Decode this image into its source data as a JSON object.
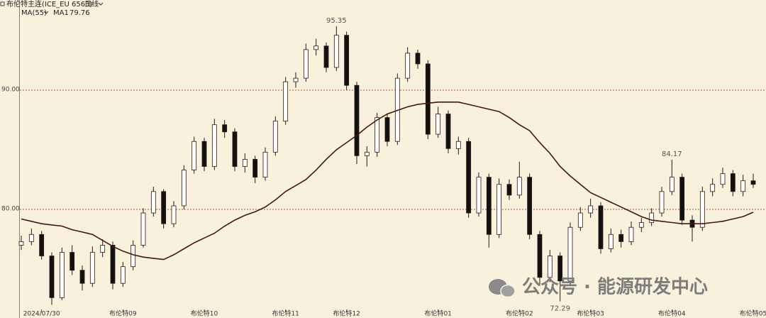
{
  "header": {
    "title": "布伦特主连(ICE_EU 6563)",
    "period": "日线"
  },
  "chart_data": {
    "type": "candlestick",
    "indicator": "MA(55)",
    "ma_name": "MA1",
    "ylim": [
      71.67,
      96.96
    ],
    "yticks": [
      {
        "value": 80,
        "label": "80.00"
      },
      {
        "value": 90,
        "label": "90.00"
      }
    ],
    "grid": true,
    "up_color": "#ffffff",
    "down_color": "#111111",
    "edge_color": "#2a1a10",
    "ma_color": "#4a1410",
    "grid_color": "#c0504d",
    "categories": [
      null,
      null,
      "2024/07/30",
      null,
      null,
      null,
      null,
      null,
      null,
      null,
      "布伦特09",
      null,
      null,
      null,
      null,
      null,
      null,
      null,
      "布伦特10",
      null,
      null,
      null,
      null,
      null,
      null,
      null,
      "布伦特11",
      null,
      null,
      null,
      null,
      null,
      "布伦特12",
      null,
      null,
      null,
      null,
      null,
      null,
      null,
      null,
      "布伦特01",
      null,
      null,
      null,
      null,
      null,
      null,
      null,
      "布伦特02",
      null,
      null,
      null,
      null,
      null,
      null,
      "布伦特03",
      null,
      null,
      null,
      null,
      null,
      null,
      null,
      "布伦特04",
      null,
      null,
      null,
      null,
      null,
      null,
      null,
      "布伦特05"
    ],
    "candles": [
      [
        77.0,
        77.8,
        76.6,
        77.3
      ],
      [
        77.3,
        78.4,
        77.0,
        77.9
      ],
      [
        77.9,
        78.2,
        75.8,
        76.1
      ],
      [
        76.1,
        76.4,
        72.0,
        72.6
      ],
      [
        72.6,
        76.8,
        72.4,
        76.4
      ],
      [
        76.4,
        77.0,
        74.5,
        74.9
      ],
      [
        74.9,
        75.3,
        73.2,
        73.8
      ],
      [
        73.8,
        76.9,
        73.5,
        76.4
      ],
      [
        76.4,
        77.5,
        76.0,
        77.0
      ],
      [
        77.0,
        77.3,
        73.3,
        73.8
      ],
      [
        73.8,
        75.6,
        73.5,
        75.2
      ],
      [
        75.2,
        77.4,
        74.9,
        77.0
      ],
      [
        77.0,
        80.1,
        76.8,
        79.7
      ],
      [
        79.7,
        81.9,
        79.4,
        81.5
      ],
      [
        81.5,
        81.7,
        78.4,
        78.8
      ],
      [
        78.8,
        80.7,
        78.5,
        80.3
      ],
      [
        80.3,
        83.7,
        80.0,
        83.3
      ],
      [
        83.3,
        86.1,
        83.0,
        85.7
      ],
      [
        85.7,
        86.0,
        83.2,
        83.6
      ],
      [
        83.6,
        87.6,
        83.3,
        87.1
      ],
      [
        87.1,
        87.5,
        86.0,
        86.5
      ],
      [
        86.5,
        86.8,
        83.2,
        83.6
      ],
      [
        83.6,
        84.7,
        83.1,
        84.2
      ],
      [
        84.2,
        84.5,
        82.2,
        82.7
      ],
      [
        82.7,
        85.2,
        82.4,
        84.8
      ],
      [
        84.8,
        87.8,
        84.5,
        87.4
      ],
      [
        87.4,
        91.1,
        87.1,
        90.7
      ],
      [
        90.7,
        91.5,
        90.2,
        91.0
      ],
      [
        91.0,
        93.9,
        90.7,
        93.4
      ],
      [
        93.4,
        94.3,
        92.9,
        93.7
      ],
      [
        93.7,
        94.0,
        91.5,
        91.9
      ],
      [
        91.9,
        95.35,
        91.6,
        94.6
      ],
      [
        94.6,
        94.9,
        90.0,
        90.4
      ],
      [
        90.4,
        90.7,
        83.8,
        84.5
      ],
      [
        84.5,
        85.3,
        83.6,
        84.8
      ],
      [
        84.8,
        88.1,
        84.4,
        87.7
      ],
      [
        87.7,
        88.0,
        85.3,
        85.7
      ],
      [
        85.7,
        91.4,
        85.4,
        91.0
      ],
      [
        91.0,
        93.6,
        90.7,
        93.1
      ],
      [
        93.1,
        93.4,
        91.8,
        92.2
      ],
      [
        92.2,
        92.5,
        85.9,
        86.3
      ],
      [
        86.3,
        88.6,
        86.0,
        88.0
      ],
      [
        88.0,
        88.3,
        84.7,
        85.1
      ],
      [
        85.1,
        86.1,
        84.6,
        85.7
      ],
      [
        85.7,
        86.0,
        79.3,
        79.7
      ],
      [
        79.7,
        83.1,
        79.4,
        82.7
      ],
      [
        82.7,
        83.0,
        76.8,
        77.9
      ],
      [
        77.9,
        82.6,
        77.6,
        82.1
      ],
      [
        82.1,
        82.5,
        80.8,
        81.2
      ],
      [
        81.2,
        84.0,
        80.9,
        82.7
      ],
      [
        82.7,
        83.0,
        77.5,
        77.9
      ],
      [
        77.9,
        78.2,
        73.6,
        74.3
      ],
      [
        74.3,
        76.6,
        73.9,
        76.1
      ],
      [
        76.1,
        76.4,
        72.29,
        74.0
      ],
      [
        74.0,
        78.9,
        73.7,
        78.5
      ],
      [
        78.5,
        80.2,
        78.2,
        79.7
      ],
      [
        79.7,
        80.9,
        79.3,
        80.3
      ],
      [
        80.3,
        80.6,
        76.3,
        76.7
      ],
      [
        76.7,
        78.4,
        76.4,
        77.9
      ],
      [
        77.9,
        78.3,
        76.8,
        77.3
      ],
      [
        77.3,
        79.0,
        77.0,
        78.5
      ],
      [
        78.5,
        79.3,
        78.1,
        78.9
      ],
      [
        78.9,
        80.1,
        78.6,
        79.7
      ],
      [
        79.7,
        81.9,
        79.4,
        81.5
      ],
      [
        81.5,
        84.17,
        81.2,
        82.7
      ],
      [
        82.7,
        83.0,
        78.7,
        79.1
      ],
      [
        79.1,
        79.5,
        77.3,
        78.5
      ],
      [
        78.5,
        81.9,
        78.2,
        81.5
      ],
      [
        81.5,
        82.6,
        81.1,
        82.1
      ],
      [
        82.1,
        83.5,
        81.8,
        83.0
      ],
      [
        83.0,
        83.3,
        81.1,
        81.5
      ],
      [
        81.5,
        82.9,
        81.1,
        82.4
      ],
      [
        82.4,
        83.0,
        81.8,
        82.1
      ]
    ],
    "ma": [
      79.2,
      79.0,
      78.8,
      78.7,
      78.6,
      78.3,
      78.1,
      77.9,
      77.4,
      76.9,
      76.5,
      76.2,
      76.0,
      75.9,
      75.8,
      76.2,
      76.7,
      77.2,
      77.6,
      78.0,
      78.6,
      79.1,
      79.5,
      79.8,
      80.2,
      80.8,
      81.5,
      82.0,
      82.5,
      83.3,
      84.2,
      85.0,
      85.6,
      86.2,
      86.9,
      87.5,
      88.0,
      88.3,
      88.6,
      88.8,
      88.9,
      89.0,
      89.0,
      89.0,
      88.8,
      88.6,
      88.4,
      88.2,
      87.7,
      87.1,
      86.6,
      85.6,
      84.7,
      83.6,
      82.8,
      82.1,
      81.4,
      81.0,
      80.6,
      80.2,
      79.8,
      79.4,
      79.1,
      79.0,
      78.9,
      78.8,
      78.8,
      78.8,
      78.9,
      79.0,
      79.2,
      79.4,
      79.76
    ],
    "annotations": [
      "chart_data.candles.31.1",
      "chart_data.candles.64.1",
      "chart_data.candles.53.2"
    ]
  },
  "watermark": "公众号 · 能源研发中心"
}
